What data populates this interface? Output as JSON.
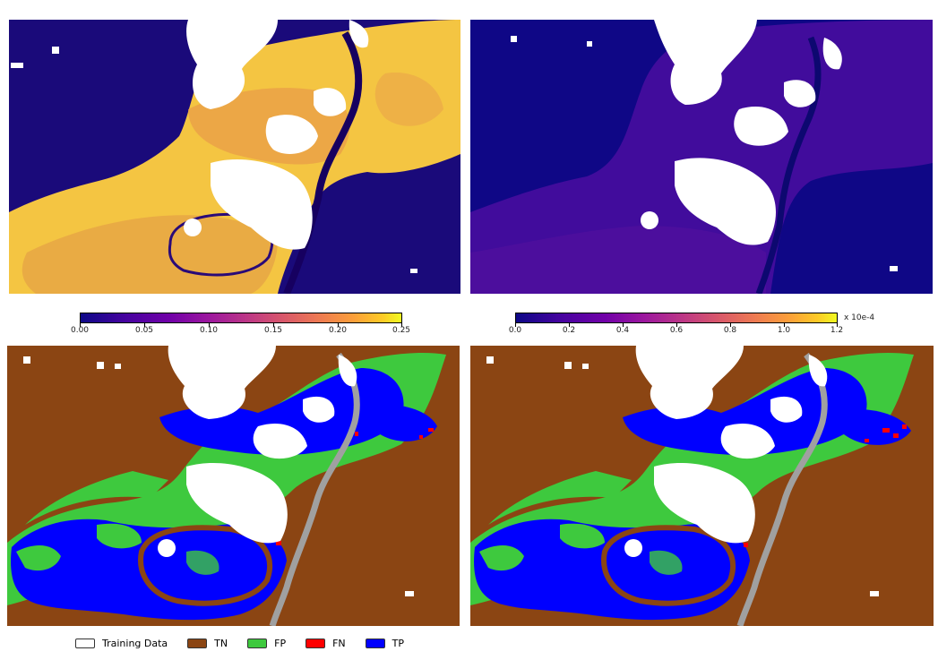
{
  "colorbar_top_left": {
    "ticks": [
      "0.00",
      "0.05",
      "0.10",
      "0.15",
      "0.20",
      "0.25"
    ],
    "unit": ""
  },
  "colorbar_top_right": {
    "ticks": [
      "0.0",
      "0.2",
      "0.4",
      "0.6",
      "0.8",
      "1.0",
      "1.2"
    ],
    "unit": "x 10e-4"
  },
  "legend": [
    {
      "label": "Training Data",
      "color": "#ffffff"
    },
    {
      "label": "TN",
      "color": "#8b4513"
    },
    {
      "label": "FP",
      "color": "#3ec93e"
    },
    {
      "label": "FN",
      "color": "#ff0000"
    },
    {
      "label": "TP",
      "color": "#0000ff"
    }
  ],
  "colormap": "plasma",
  "map_colors": {
    "land": "#8b4513",
    "fp": "#3ec93e",
    "fn": "#ff0000",
    "tp": "#0000ff",
    "river": "#a0a0a0",
    "training": "#ffffff",
    "low": "#1a0a7a"
  }
}
